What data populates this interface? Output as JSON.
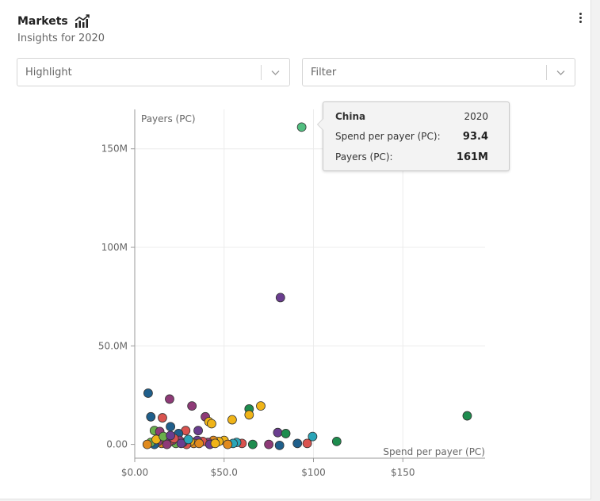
{
  "header": {
    "title": "Markets",
    "subtitle": "Insights for 2020",
    "title_icon": "chart-icon",
    "menu_icon": "vertical-dots-icon"
  },
  "controls": {
    "highlight_placeholder": "Highlight",
    "filter_placeholder": "Filter",
    "chevron_icon": "chevron-down-icon"
  },
  "tooltip": {
    "country": "China",
    "year": "2020",
    "spend_label": "Spend per payer (PC):",
    "spend_value": "93.4",
    "payers_label": "Payers (PC):",
    "payers_value": "161M"
  },
  "chart_data": {
    "type": "scatter",
    "xlabel": "Spend per payer (PC)",
    "ylabel": "Payers (PC)",
    "xlim": [
      0,
      196
    ],
    "ylim": [
      -7000000,
      170000000
    ],
    "x_ticks": [
      {
        "value": 0,
        "label": "$0.00"
      },
      {
        "value": 50,
        "label": "$50.0"
      },
      {
        "value": 100,
        "label": "$100"
      },
      {
        "value": 150,
        "label": "$150"
      }
    ],
    "y_ticks": [
      {
        "value": 0,
        "label": "0.00"
      },
      {
        "value": 50000000,
        "label": "50.0M"
      },
      {
        "value": 100000000,
        "label": "100M"
      },
      {
        "value": 150000000,
        "label": "150M"
      }
    ],
    "grid": true,
    "highlighted": {
      "name": "China",
      "x": 93.4,
      "y": 161000000,
      "color": "#52be80"
    },
    "colors": {
      "green": "#1e8c4e",
      "light_green": "#52be80",
      "purple": "#6a3d8f",
      "magenta": "#8e3a77",
      "blue": "#1f5f8b",
      "teal": "#2aa5b8",
      "yellow": "#f0b418",
      "orange": "#e08a1e",
      "red": "#d9534f",
      "lime": "#6ab04c"
    },
    "points": [
      {
        "x": 93.4,
        "y": 161000000,
        "c": "light_green"
      },
      {
        "x": 81.5,
        "y": 74500000,
        "c": "purple"
      },
      {
        "x": 186,
        "y": 14500000,
        "c": "green"
      },
      {
        "x": 7.5,
        "y": 26000000,
        "c": "blue"
      },
      {
        "x": 19.5,
        "y": 23000000,
        "c": "magenta"
      },
      {
        "x": 32,
        "y": 19500000,
        "c": "magenta"
      },
      {
        "x": 70.5,
        "y": 19500000,
        "c": "yellow"
      },
      {
        "x": 64,
        "y": 18000000,
        "c": "green"
      },
      {
        "x": 9,
        "y": 14000000,
        "c": "blue"
      },
      {
        "x": 15.5,
        "y": 13500000,
        "c": "red"
      },
      {
        "x": 39.5,
        "y": 14000000,
        "c": "magenta"
      },
      {
        "x": 64,
        "y": 15000000,
        "c": "yellow"
      },
      {
        "x": 54.5,
        "y": 12500000,
        "c": "yellow"
      },
      {
        "x": 41.5,
        "y": 11500000,
        "c": "yellow"
      },
      {
        "x": 43,
        "y": 10500000,
        "c": "yellow"
      },
      {
        "x": 20,
        "y": 9000000,
        "c": "blue"
      },
      {
        "x": 11,
        "y": 7000000,
        "c": "lime"
      },
      {
        "x": 14,
        "y": 6500000,
        "c": "magenta"
      },
      {
        "x": 28.5,
        "y": 7000000,
        "c": "red"
      },
      {
        "x": 35.5,
        "y": 7000000,
        "c": "purple"
      },
      {
        "x": 24.5,
        "y": 5500000,
        "c": "blue"
      },
      {
        "x": 80,
        "y": 6000000,
        "c": "purple"
      },
      {
        "x": 84.5,
        "y": 5500000,
        "c": "green"
      },
      {
        "x": 99.5,
        "y": 4000000,
        "c": "teal"
      },
      {
        "x": 113,
        "y": 1500000,
        "c": "green"
      },
      {
        "x": 91,
        "y": 500000,
        "c": "blue"
      },
      {
        "x": 96.5,
        "y": 500000,
        "c": "red"
      },
      {
        "x": 81,
        "y": -500000,
        "c": "blue"
      },
      {
        "x": 75,
        "y": 0,
        "c": "magenta"
      },
      {
        "x": 66,
        "y": 0,
        "c": "green"
      },
      {
        "x": 60,
        "y": 500000,
        "c": "red"
      },
      {
        "x": 57,
        "y": 1000000,
        "c": "teal"
      },
      {
        "x": 55,
        "y": 500000,
        "c": "teal"
      },
      {
        "x": 50,
        "y": 2000000,
        "c": "yellow"
      },
      {
        "x": 47,
        "y": 1500000,
        "c": "yellow"
      },
      {
        "x": 44,
        "y": 2000000,
        "c": "orange"
      },
      {
        "x": 41,
        "y": 1000000,
        "c": "magenta"
      },
      {
        "x": 38,
        "y": 1500000,
        "c": "red"
      },
      {
        "x": 35,
        "y": 2000000,
        "c": "purple"
      },
      {
        "x": 33,
        "y": 500000,
        "c": "orange"
      },
      {
        "x": 31,
        "y": 1500000,
        "c": "yellow"
      },
      {
        "x": 29,
        "y": 0,
        "c": "red"
      },
      {
        "x": 27,
        "y": 1000000,
        "c": "blue"
      },
      {
        "x": 25,
        "y": 2000000,
        "c": "magenta"
      },
      {
        "x": 23,
        "y": 500000,
        "c": "lime"
      },
      {
        "x": 21,
        "y": 2000000,
        "c": "magenta"
      },
      {
        "x": 19,
        "y": 1000000,
        "c": "red"
      },
      {
        "x": 17,
        "y": 2000000,
        "c": "purple"
      },
      {
        "x": 15,
        "y": 500000,
        "c": "orange"
      },
      {
        "x": 13,
        "y": 1500000,
        "c": "magenta"
      },
      {
        "x": 11,
        "y": 0,
        "c": "blue"
      },
      {
        "x": 9,
        "y": 1000000,
        "c": "lime"
      },
      {
        "x": 7,
        "y": 0,
        "c": "orange"
      },
      {
        "x": 12,
        "y": 2500000,
        "c": "yellow"
      },
      {
        "x": 18,
        "y": 0,
        "c": "magenta"
      },
      {
        "x": 22,
        "y": 3000000,
        "c": "red"
      },
      {
        "x": 26,
        "y": 500000,
        "c": "purple"
      },
      {
        "x": 30,
        "y": 2500000,
        "c": "teal"
      },
      {
        "x": 36,
        "y": 500000,
        "c": "orange"
      },
      {
        "x": 42,
        "y": 0,
        "c": "purple"
      },
      {
        "x": 45,
        "y": 500000,
        "c": "yellow"
      },
      {
        "x": 52,
        "y": 0,
        "c": "orange"
      },
      {
        "x": 16,
        "y": 4000000,
        "c": "lime"
      },
      {
        "x": 20,
        "y": 4500000,
        "c": "purple"
      }
    ]
  }
}
